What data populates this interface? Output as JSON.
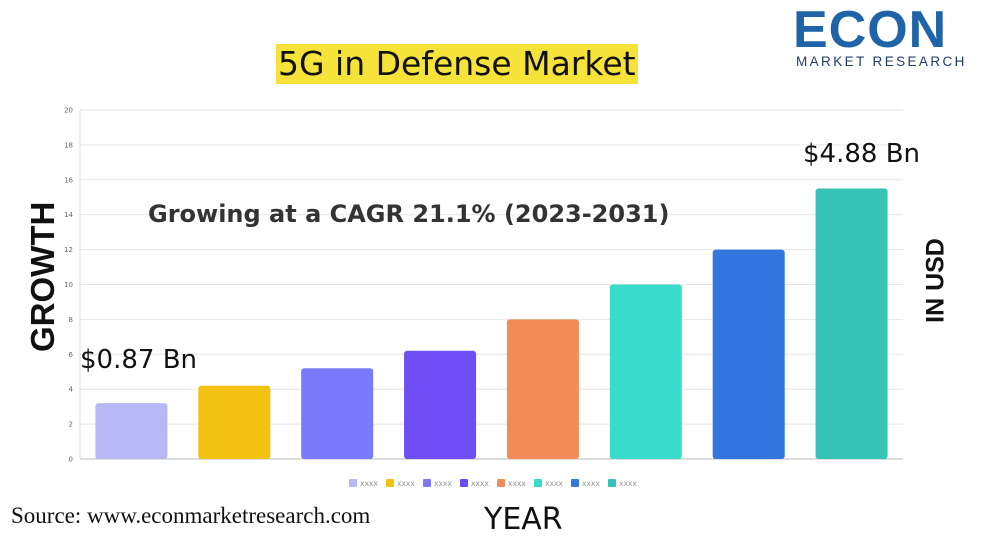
{
  "title": "5G in Defense Market",
  "logo": {
    "name": "ECON",
    "tagline": "MARKET RESEARCH"
  },
  "ylabel": "GROWTH",
  "right_label": "IN USD",
  "xlabel": "YEAR",
  "source": "Source: www.econmarketresearch.com",
  "corner_text": "",
  "colors": {
    "title_highlight": "#f6e33a",
    "logo_blue": "#1f64a8",
    "grid": "#e6e6e6"
  },
  "chart_data": {
    "type": "bar",
    "categories": [
      "XXXX",
      "XXXX",
      "XXXX",
      "XXXX",
      "XXXX",
      "XXXX",
      "XXXX",
      "XXXX"
    ],
    "values": [
      3.2,
      4.2,
      5.2,
      6.2,
      8.0,
      10.0,
      12.0,
      15.5
    ],
    "colors": [
      "#b9b8f6",
      "#f2c111",
      "#7979fa",
      "#6f4ef5",
      "#f28b57",
      "#39dbcb",
      "#3376e0",
      "#35c3b6"
    ],
    "ylim": [
      0,
      20
    ],
    "yticks": [
      0,
      2,
      4,
      6,
      8,
      10,
      12,
      14,
      16,
      18,
      20
    ],
    "grid": true,
    "legend_position": "bottom",
    "annotations": {
      "cagr": "Growing at a CAGR 21.1% (2023-2031)",
      "start_value": "$0.87 Bn",
      "end_value": "$4.88 Bn"
    }
  }
}
